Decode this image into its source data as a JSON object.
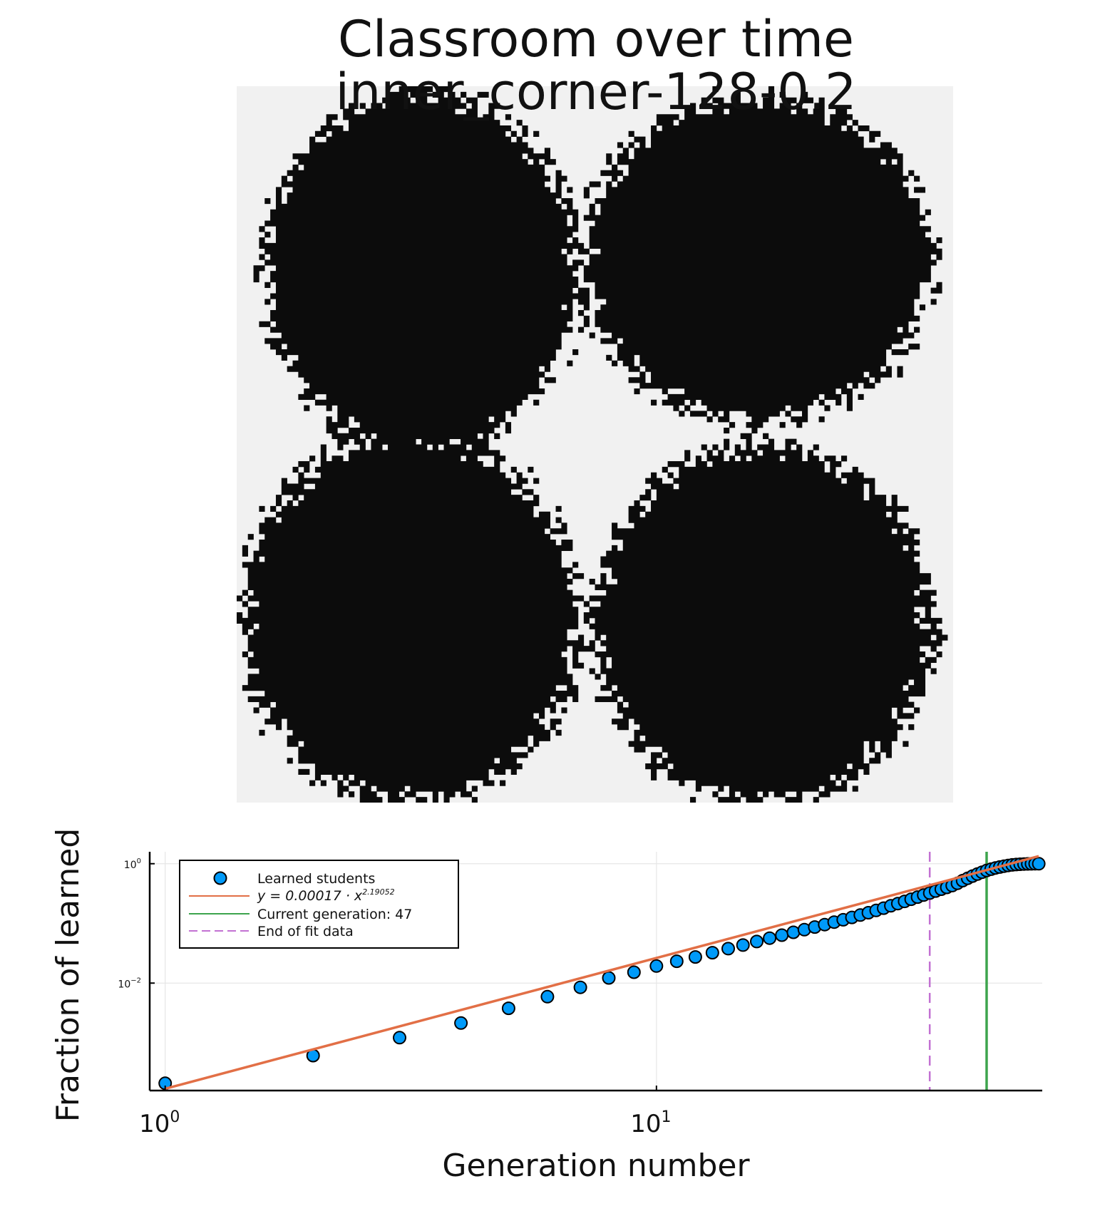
{
  "title": {
    "line1": "Classroom over time",
    "line2": "inner_corner-128-0.2"
  },
  "classroom": {
    "grid_size": 128,
    "learned_color": "#0c0c0c",
    "unlearned_color": "#f1f1f1",
    "clusters_described": "four blobs in quadrants"
  },
  "chart_data": {
    "type": "scatter",
    "title": "",
    "xlabel": "Generation number",
    "ylabel": "Fraction of learned",
    "xscale": "log",
    "yscale": "log",
    "xlim": [
      0.93,
      61
    ],
    "ylim_log10": [
      -3.8,
      0.2
    ],
    "x_ticks": [
      1,
      10
    ],
    "x_tick_labels": [
      {
        "base": "10",
        "exp": "0"
      },
      {
        "base": "10",
        "exp": "1"
      }
    ],
    "y_ticks": [
      1,
      0.01
    ],
    "y_tick_labels": [
      {
        "base": "10",
        "exp": "0"
      },
      {
        "base": "10",
        "exp": "−2"
      }
    ],
    "grid": true,
    "legend_position": "top-left",
    "series": [
      {
        "name": "Learned students",
        "kind": "scatter",
        "color": "#009af9",
        "x": [
          1,
          2,
          3,
          4,
          5,
          6,
          7,
          8,
          9,
          10,
          11,
          12,
          13,
          14,
          15,
          16,
          17,
          18,
          19,
          20,
          21,
          22,
          23,
          24,
          25,
          26,
          27,
          28,
          29,
          30,
          31,
          32,
          33,
          34,
          35,
          36,
          37,
          38,
          39,
          40,
          41,
          42,
          43,
          44,
          45,
          46,
          47,
          48,
          49,
          50,
          51,
          52,
          53,
          54,
          55,
          56,
          57,
          58,
          59,
          60
        ],
        "y": [
          0.00021,
          0.00061,
          0.00122,
          0.00214,
          0.00378,
          0.00592,
          0.0085,
          0.0122,
          0.0152,
          0.0193,
          0.0232,
          0.0274,
          0.0323,
          0.0378,
          0.0434,
          0.0497,
          0.0566,
          0.0635,
          0.071,
          0.0785,
          0.0868,
          0.0955,
          0.105,
          0.115,
          0.126,
          0.138,
          0.151,
          0.165,
          0.18,
          0.197,
          0.215,
          0.234,
          0.254,
          0.276,
          0.299,
          0.323,
          0.348,
          0.374,
          0.401,
          0.43,
          0.47,
          0.52,
          0.57,
          0.62,
          0.67,
          0.72,
          0.77,
          0.81,
          0.85,
          0.88,
          0.91,
          0.935,
          0.955,
          0.97,
          0.98,
          0.988,
          0.993,
          0.996,
          0.998,
          1.0
        ]
      },
      {
        "name": "y = 0.00017 · x^2.19052",
        "kind": "fit",
        "color": "#e26f46",
        "coefficient": 0.00017,
        "exponent": 2.19052,
        "x_range": [
          1,
          60
        ],
        "legend_text": "y = 0.00017 · x",
        "legend_exp": "2.19052"
      },
      {
        "name": "Current generation: 47",
        "kind": "vline",
        "color": "#3da44d",
        "x": 47
      },
      {
        "name": "End of fit data",
        "kind": "vline-dashed",
        "color": "#c271d2",
        "x": 36
      }
    ]
  }
}
